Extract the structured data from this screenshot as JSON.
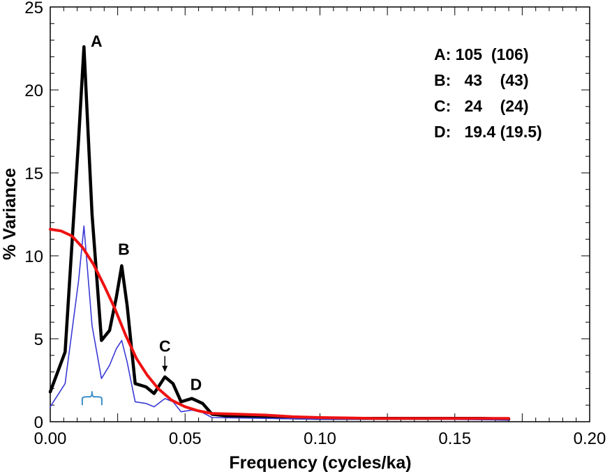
{
  "chart_data": {
    "type": "line",
    "xlabel": "Frequency (cycles/ka)",
    "ylabel": "% Variance",
    "xlim": [
      0,
      0.2
    ],
    "ylim": [
      0,
      25
    ],
    "x_ticks": [
      0,
      0.05,
      0.1,
      0.15,
      0.2
    ],
    "x_tick_labels": [
      "0.00",
      "0.05",
      "0.10",
      "0.15",
      "0.20"
    ],
    "y_ticks": [
      0,
      5,
      10,
      15,
      20,
      25
    ],
    "y_tick_labels": [
      "0",
      "5",
      "10",
      "15",
      "20",
      "25"
    ],
    "grid": false,
    "series": [
      {
        "color": "#000000",
        "points": [
          [
            0,
            1.8
          ],
          [
            0.0055,
            4.2
          ],
          [
            0.0105,
            17.0
          ],
          [
            0.0125,
            22.6
          ],
          [
            0.0155,
            12.5
          ],
          [
            0.019,
            4.9
          ],
          [
            0.022,
            5.5
          ],
          [
            0.0245,
            7.5
          ],
          [
            0.0265,
            9.4
          ],
          [
            0.0285,
            7.0
          ],
          [
            0.0315,
            2.3
          ],
          [
            0.0355,
            2.1
          ],
          [
            0.0385,
            1.7
          ],
          [
            0.0425,
            2.7
          ],
          [
            0.0455,
            2.3
          ],
          [
            0.0485,
            1.2
          ],
          [
            0.0525,
            1.4
          ],
          [
            0.0565,
            1.1
          ],
          [
            0.06,
            0.45
          ],
          [
            0.066,
            0.35
          ],
          [
            0.075,
            0.3
          ],
          [
            0.085,
            0.25
          ],
          [
            0.1,
            0.2
          ],
          [
            0.12,
            0.2
          ],
          [
            0.14,
            0.2
          ],
          [
            0.16,
            0.2
          ],
          [
            0.17,
            0.15
          ]
        ]
      },
      {
        "color": "#3a3ad6",
        "points": [
          [
            0,
            0.9
          ],
          [
            0.0055,
            2.3
          ],
          [
            0.0105,
            8.5
          ],
          [
            0.0125,
            11.8
          ],
          [
            0.0155,
            5.8
          ],
          [
            0.019,
            2.6
          ],
          [
            0.022,
            3.4
          ],
          [
            0.0245,
            4.4
          ],
          [
            0.0265,
            4.9
          ],
          [
            0.0285,
            3.6
          ],
          [
            0.0315,
            1.2
          ],
          [
            0.0355,
            1.1
          ],
          [
            0.0385,
            0.9
          ],
          [
            0.0425,
            1.4
          ],
          [
            0.0455,
            1.2
          ],
          [
            0.0485,
            0.6
          ],
          [
            0.0525,
            0.7
          ],
          [
            0.0565,
            0.55
          ],
          [
            0.06,
            0.25
          ],
          [
            0.08,
            0.2
          ],
          [
            0.1,
            0.15
          ],
          [
            0.14,
            0.15
          ],
          [
            0.17,
            0.1
          ]
        ]
      },
      {
        "color": "#ee1111",
        "points": [
          [
            0,
            11.6
          ],
          [
            0.004,
            11.5
          ],
          [
            0.008,
            11.2
          ],
          [
            0.012,
            10.5
          ],
          [
            0.016,
            9.5
          ],
          [
            0.02,
            8.2
          ],
          [
            0.024,
            6.8
          ],
          [
            0.028,
            5.2
          ],
          [
            0.032,
            3.8
          ],
          [
            0.036,
            2.8
          ],
          [
            0.04,
            2.0
          ],
          [
            0.045,
            1.3
          ],
          [
            0.05,
            0.9
          ],
          [
            0.055,
            0.65
          ],
          [
            0.06,
            0.5
          ],
          [
            0.07,
            0.45
          ],
          [
            0.08,
            0.4
          ],
          [
            0.09,
            0.3
          ],
          [
            0.1,
            0.25
          ],
          [
            0.12,
            0.2
          ],
          [
            0.14,
            0.2
          ],
          [
            0.16,
            0.2
          ],
          [
            0.17,
            0.2
          ]
        ]
      }
    ],
    "peak_labels": [
      {
        "text": "A",
        "x": 0.0125,
        "y": 22.6
      },
      {
        "text": "B",
        "x": 0.0265,
        "y": 9.4
      },
      {
        "text": "C",
        "x": 0.0425,
        "y": 2.7
      },
      {
        "text": "D",
        "x": 0.0525,
        "y": 1.4
      }
    ],
    "annotation_lines": [
      "A: 105  (106)",
      "B:   43    (43)",
      "C:   24    (24)",
      "D:   19.4 (19.5)"
    ],
    "bracket_color": "#3a8fc7"
  }
}
